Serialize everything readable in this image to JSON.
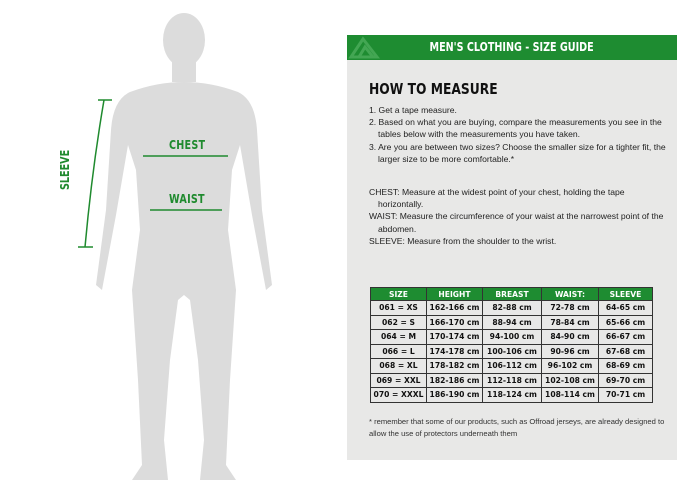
{
  "labels": {
    "chest": "CHEST",
    "waist": "WAIST",
    "sleeve": "SLEEVE"
  },
  "colors": {
    "brand_green": "#1e8c31",
    "panel_bg": "#e8e8e7",
    "silhouette": "#dcdcdc"
  },
  "panel": {
    "title": "MEN'S CLOTHING - SIZE GUIDE",
    "heading": "HOW TO MEASURE",
    "steps": [
      "1. Get a tape measure.",
      "2. Based on what you are buying, compare the measurements you see in the tables below with the measurements you have taken.",
      "3. Are you are between two sizes? Choose the smaller size for a tighter fit, the larger size to be more comfortable.*"
    ],
    "definitions": [
      "CHEST: Measure at the widest point of your chest, holding the tape horizontally.",
      "WAIST: Measure the circumference of your waist at the narrowest point of the abdomen.",
      "SLEEVE: Measure from the shoulder to the wrist."
    ],
    "table": {
      "headers": [
        "SIZE",
        "HEIGHT",
        "BREAST",
        "WAIST:",
        "SLEEVE"
      ],
      "rows": [
        [
          "061 = XS",
          "162-166 cm",
          "82-88 cm",
          "72-78 cm",
          "64-65 cm"
        ],
        [
          "062 = S",
          "166-170 cm",
          "88-94 cm",
          "78-84 cm",
          "65-66 cm"
        ],
        [
          "064 = M",
          "170-174 cm",
          "94-100 cm",
          "84-90 cm",
          "66-67 cm"
        ],
        [
          "066 = L",
          "174-178 cm",
          "100-106 cm",
          "90-96 cm",
          "67-68 cm"
        ],
        [
          "068 = XL",
          "178-182 cm",
          "106-112 cm",
          "96-102 cm",
          "68-69 cm"
        ],
        [
          "069 = XXL",
          "182-186 cm",
          "112-118 cm",
          "102-108 cm",
          "69-70 cm"
        ],
        [
          "070 = XXXL",
          "186-190 cm",
          "118-124 cm",
          "108-114 cm",
          "70-71 cm"
        ]
      ]
    },
    "note": "* remember that some of our products, such as Offroad jerseys, are already designed to allow the use of protectors underneath them"
  }
}
